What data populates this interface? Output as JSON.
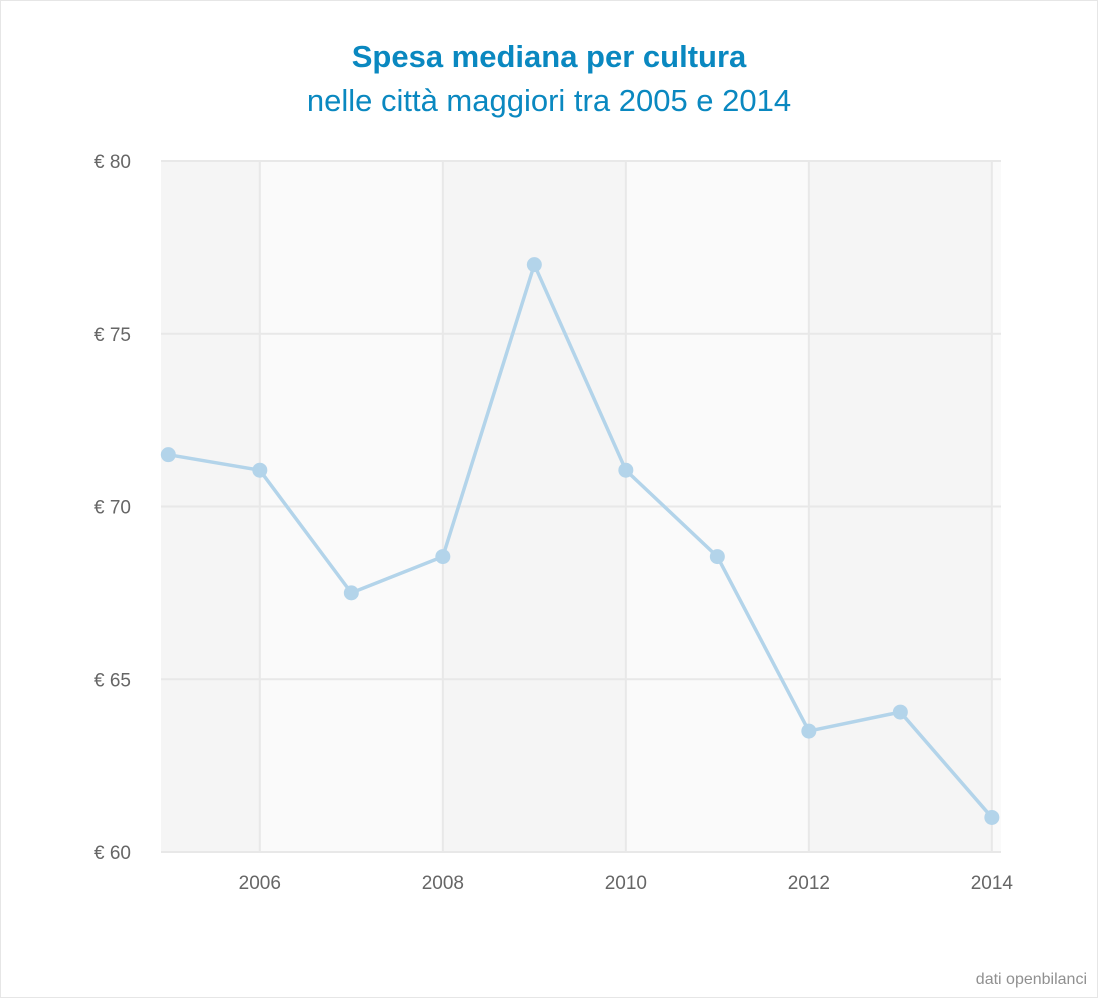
{
  "chart_data": {
    "type": "line",
    "title": "Spesa mediana per cultura",
    "subtitle": "nelle città maggiori tra 2005 e 2014",
    "x": [
      2005,
      2006,
      2007,
      2008,
      2009,
      2010,
      2011,
      2012,
      2013,
      2014
    ],
    "series": [
      {
        "values": [
          71.5,
          71.05,
          67.5,
          68.55,
          77.0,
          71.05,
          68.55,
          63.5,
          64.05,
          61.0
        ],
        "color": "#b3d4ea"
      }
    ],
    "x_ticks": [
      2006,
      2008,
      2010,
      2012,
      2014
    ],
    "x_tick_labels": [
      "2006",
      "2008",
      "2010",
      "2012",
      "2014"
    ],
    "y_ticks": [
      60,
      65,
      70,
      75,
      80
    ],
    "y_tick_labels": [
      "€ 60",
      "€ 65",
      "€ 70",
      "€ 75",
      "€ 80"
    ],
    "xlim": [
      2004.92,
      2014.1
    ],
    "ylim": [
      60,
      80
    ],
    "grid": true,
    "alternate_bands": [
      "#f5f5f5",
      "#fafafa"
    ],
    "gridline_color": "#e8e8e8",
    "title_color": "#0a88c0",
    "credits": "dati openbilanci"
  }
}
